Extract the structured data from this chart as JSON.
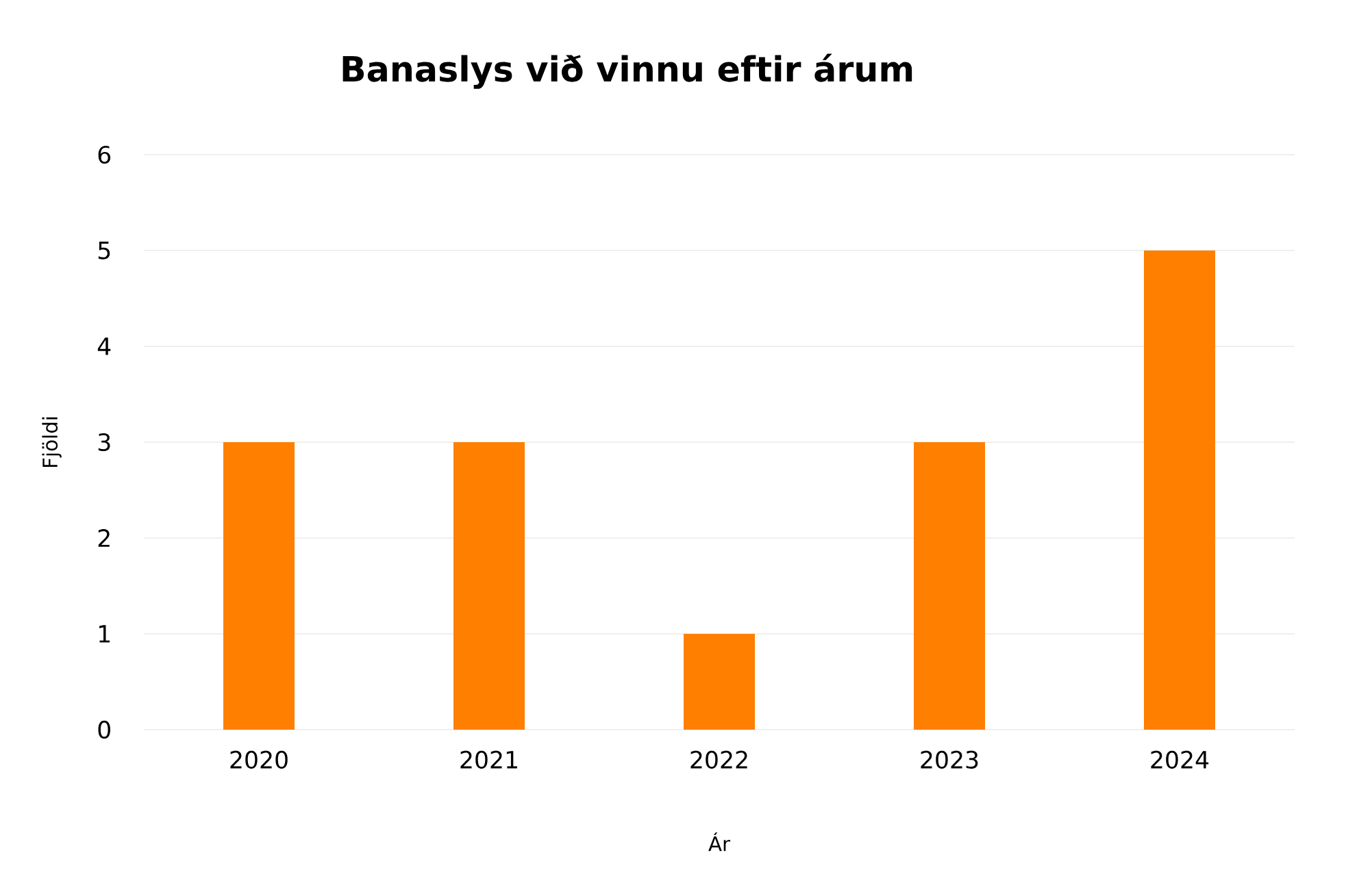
{
  "chart_data": {
    "type": "bar",
    "title": "Banaslys við vinnu eftir árum",
    "xlabel": "Ár",
    "ylabel": "Fjöldi",
    "categories": [
      "2020",
      "2021",
      "2022",
      "2023",
      "2024"
    ],
    "values": [
      3,
      3,
      1,
      3,
      5
    ],
    "color": "#ff7f00",
    "ylim": [
      0,
      6
    ],
    "yticks": [
      0,
      1,
      2,
      3,
      4,
      5,
      6
    ],
    "grid": "y"
  }
}
